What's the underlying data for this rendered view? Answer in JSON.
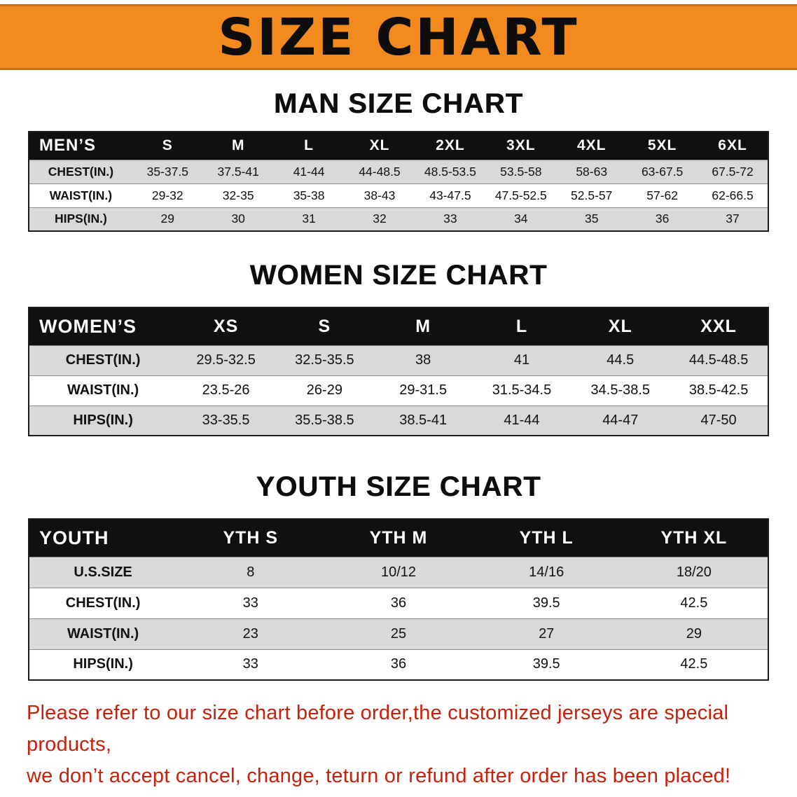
{
  "banner": {
    "title": "SIZE CHART"
  },
  "colors": {
    "banner_bg": "#F28A1E",
    "banner_edge": "#C96F12",
    "header_bg": "#101010",
    "row_alt": "#D9D9D9",
    "notice_red": "#C8200A"
  },
  "sections": [
    {
      "title": "MAN SIZE CHART",
      "table": {
        "header": [
          "MEN’S",
          "S",
          "M",
          "L",
          "XL",
          "2XL",
          "3XL",
          "4XL",
          "5XL",
          "6XL"
        ],
        "rows": [
          {
            "label": "CHEST(IN.)",
            "values": [
              "35-37.5",
              "37.5-41",
              "41-44",
              "44-48.5",
              "48.5-53.5",
              "53.5-58",
              "58-63",
              "63-67.5",
              "67.5-72"
            ]
          },
          {
            "label": "WAIST(IN.)",
            "values": [
              "29-32",
              "32-35",
              "35-38",
              "38-43",
              "43-47.5",
              "47.5-52.5",
              "52.5-57",
              "57-62",
              "62-66.5"
            ]
          },
          {
            "label": "HIPS(IN.)",
            "values": [
              "29",
              "30",
              "31",
              "32",
              "33",
              "34",
              "35",
              "36",
              "37"
            ]
          }
        ]
      }
    },
    {
      "title": "WOMEN SIZE CHART",
      "table": {
        "header": [
          "WOMEN’S",
          "XS",
          "S",
          "M",
          "L",
          "XL",
          "XXL"
        ],
        "rows": [
          {
            "label": "CHEST(IN.)",
            "values": [
              "29.5-32.5",
              "32.5-35.5",
              "38",
              "41",
              "44.5",
              "44.5-48.5"
            ]
          },
          {
            "label": "WAIST(IN.)",
            "values": [
              "23.5-26",
              "26-29",
              "29-31.5",
              "31.5-34.5",
              "34.5-38.5",
              "38.5-42.5"
            ]
          },
          {
            "label": "HIPS(IN.)",
            "values": [
              "33-35.5",
              "35.5-38.5",
              "38.5-41",
              "41-44",
              "44-47",
              "47-50"
            ]
          }
        ]
      }
    },
    {
      "title": "YOUTH SIZE CHART",
      "table": {
        "header": [
          "YOUTH",
          "YTH S",
          "YTH M",
          "YTH L",
          "YTH XL"
        ],
        "rows": [
          {
            "label": "U.S.SIZE",
            "values": [
              "8",
              "10/12",
              "14/16",
              "18/20"
            ]
          },
          {
            "label": "CHEST(IN.)",
            "values": [
              "33",
              "36",
              "39.5",
              "42.5"
            ]
          },
          {
            "label": "WAIST(IN.)",
            "values": [
              "23",
              "25",
              "27",
              "29"
            ]
          },
          {
            "label": "HIPS(IN.)",
            "values": [
              "33",
              "36",
              "39.5",
              "42.5"
            ]
          }
        ]
      }
    }
  ],
  "notice": {
    "line1": "Please refer to our size chart before order,the customized jerseys are special products,",
    "line2": "we don’t accept cancel, change, teturn or refund after order has been placed!"
  }
}
